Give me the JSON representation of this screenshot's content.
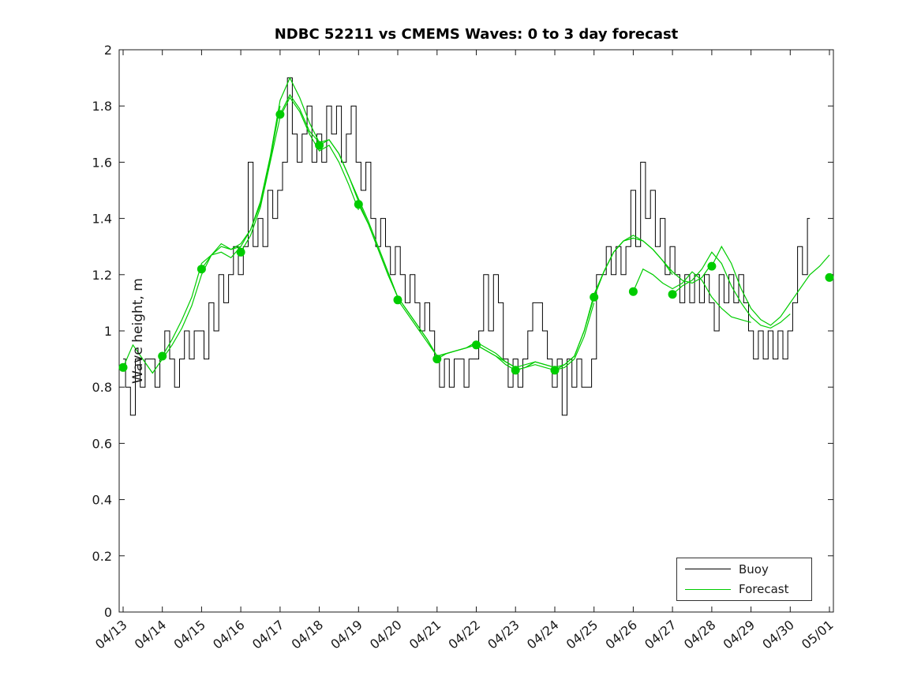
{
  "figure": {
    "title": "NDBC 52211 vs CMEMS Waves: 0 to 3 day forecast",
    "ylabel": "Wave height, m"
  },
  "legend": {
    "entries": [
      {
        "label": "Buoy",
        "color": "#000000"
      },
      {
        "label": "Forecast",
        "color": "#00cc00"
      }
    ]
  },
  "chart_data": {
    "type": "line",
    "title": "NDBC 52211 vs CMEMS Waves: 0 to 3 day forecast",
    "xlabel": "",
    "ylabel": "Wave height, m",
    "ylim": [
      0,
      2
    ],
    "xlim_days": [
      -0.1,
      18.1
    ],
    "grid": false,
    "legend_position": "bottom-right",
    "y_ticks": [
      {
        "value": 0,
        "label": "0"
      },
      {
        "value": 0.2,
        "label": "0.2"
      },
      {
        "value": 0.4,
        "label": "0.4"
      },
      {
        "value": 0.6,
        "label": "0.6"
      },
      {
        "value": 0.8,
        "label": "0.8"
      },
      {
        "value": 1,
        "label": "1"
      },
      {
        "value": 1.2,
        "label": "1.2"
      },
      {
        "value": 1.4,
        "label": "1.4"
      },
      {
        "value": 1.6,
        "label": "1.6"
      },
      {
        "value": 1.8,
        "label": "1.8"
      },
      {
        "value": 2,
        "label": "2"
      }
    ],
    "x_ticks": [
      {
        "day": 0,
        "label": "04/13"
      },
      {
        "day": 1,
        "label": "04/14"
      },
      {
        "day": 2,
        "label": "04/15"
      },
      {
        "day": 3,
        "label": "04/16"
      },
      {
        "day": 4,
        "label": "04/17"
      },
      {
        "day": 5,
        "label": "04/18"
      },
      {
        "day": 6,
        "label": "04/19"
      },
      {
        "day": 7,
        "label": "04/20"
      },
      {
        "day": 8,
        "label": "04/21"
      },
      {
        "day": 9,
        "label": "04/22"
      },
      {
        "day": 10,
        "label": "04/23"
      },
      {
        "day": 11,
        "label": "04/24"
      },
      {
        "day": 12,
        "label": "04/25"
      },
      {
        "day": 13,
        "label": "04/26"
      },
      {
        "day": 14,
        "label": "04/27"
      },
      {
        "day": 15,
        "label": "04/28"
      },
      {
        "day": 16,
        "label": "04/29"
      },
      {
        "day": 17,
        "label": "04/30"
      },
      {
        "day": 18,
        "label": "05/01"
      }
    ],
    "series": {
      "buoy": {
        "name": "Buoy",
        "color": "#000000",
        "x_start_day": 0,
        "x_step_days": 0.125,
        "values": [
          0.9,
          0.8,
          0.7,
          0.9,
          0.8,
          0.9,
          0.9,
          0.8,
          0.9,
          1.0,
          0.9,
          0.8,
          0.9,
          1.0,
          0.9,
          1.0,
          1.0,
          0.9,
          1.1,
          1.0,
          1.2,
          1.1,
          1.2,
          1.3,
          1.2,
          1.3,
          1.6,
          1.3,
          1.4,
          1.3,
          1.5,
          1.4,
          1.5,
          1.6,
          1.9,
          1.7,
          1.6,
          1.7,
          1.8,
          1.6,
          1.7,
          1.6,
          1.8,
          1.7,
          1.8,
          1.6,
          1.7,
          1.8,
          1.6,
          1.5,
          1.6,
          1.4,
          1.3,
          1.4,
          1.3,
          1.2,
          1.3,
          1.2,
          1.1,
          1.2,
          1.1,
          1.0,
          1.1,
          1.0,
          0.9,
          0.8,
          0.9,
          0.8,
          0.9,
          0.9,
          0.8,
          0.9,
          0.9,
          1.0,
          1.2,
          1.0,
          1.2,
          1.1,
          0.9,
          0.8,
          0.9,
          0.8,
          0.9,
          1.0,
          1.1,
          1.1,
          1.0,
          0.9,
          0.8,
          0.9,
          0.7,
          0.9,
          0.8,
          0.9,
          0.8,
          0.8,
          0.9,
          1.2,
          1.2,
          1.3,
          1.2,
          1.3,
          1.2,
          1.3,
          1.5,
          1.3,
          1.6,
          1.4,
          1.5,
          1.3,
          1.4,
          1.2,
          1.3,
          1.2,
          1.1,
          1.2,
          1.1,
          1.2,
          1.1,
          1.2,
          1.1,
          1.0,
          1.2,
          1.1,
          1.2,
          1.1,
          1.2,
          1.1,
          1.0,
          0.9,
          1.0,
          0.9,
          1.0,
          0.9,
          1.0,
          0.9,
          1.0,
          1.1,
          1.3,
          1.2,
          1.4
        ]
      },
      "forecasts": {
        "name": "Forecast",
        "color": "#00cc00",
        "x_step_days": 0.25,
        "runs": [
          {
            "start_day": 0,
            "start_label": "04/13",
            "values": [
              0.87,
              0.95,
              0.9,
              0.85,
              0.9,
              0.95,
              1.01,
              1.09,
              1.2,
              1.27,
              1.31,
              1.29,
              1.3
            ]
          },
          {
            "start_day": 1,
            "start_label": "04/14",
            "values": [
              0.91,
              0.97,
              1.04,
              1.12,
              1.24,
              1.27,
              1.28,
              1.26,
              1.3,
              1.36,
              1.45,
              1.61,
              1.8
            ]
          },
          {
            "start_day": 2,
            "start_label": "04/15",
            "values": [
              1.22,
              1.27,
              1.3,
              1.29,
              1.31,
              1.36,
              1.46,
              1.62,
              1.82,
              1.9,
              1.83,
              1.74,
              1.67
            ]
          },
          {
            "start_day": 3,
            "start_label": "04/16",
            "values": [
              1.28,
              1.34,
              1.44,
              1.6,
              1.76,
              1.83,
              1.78,
              1.7,
              1.64,
              1.66,
              1.6,
              1.52,
              1.43
            ]
          },
          {
            "start_day": 4,
            "start_label": "04/17",
            "values": [
              1.77,
              1.84,
              1.79,
              1.71,
              1.67,
              1.68,
              1.63,
              1.55,
              1.47,
              1.39,
              1.3,
              1.21,
              1.12
            ]
          },
          {
            "start_day": 5,
            "start_label": "04/18",
            "values": [
              1.66,
              1.68,
              1.63,
              1.55,
              1.46,
              1.38,
              1.29,
              1.2,
              1.12,
              1.07,
              1.02,
              0.97,
              0.91
            ]
          },
          {
            "start_day": 6,
            "start_label": "04/19",
            "values": [
              1.45,
              1.38,
              1.29,
              1.2,
              1.12,
              1.07,
              1.02,
              0.97,
              0.91,
              0.92,
              0.93,
              0.94,
              0.96
            ]
          },
          {
            "start_day": 7,
            "start_label": "04/20",
            "values": [
              1.11,
              1.06,
              1.01,
              0.96,
              0.91,
              0.92,
              0.93,
              0.94,
              0.95,
              0.93,
              0.91,
              0.89,
              0.87
            ]
          },
          {
            "start_day": 8,
            "start_label": "04/21",
            "values": [
              0.9,
              0.92,
              0.93,
              0.94,
              0.96,
              0.94,
              0.92,
              0.89,
              0.87,
              0.88,
              0.89,
              0.88,
              0.87
            ]
          },
          {
            "start_day": 9,
            "start_label": "04/22",
            "values": [
              0.95,
              0.93,
              0.91,
              0.88,
              0.86,
              0.87,
              0.88,
              0.87,
              0.86,
              0.87,
              0.9,
              0.98,
              1.1
            ]
          },
          {
            "start_day": 10,
            "start_label": "04/23",
            "values": [
              0.86,
              0.87,
              0.89,
              0.88,
              0.87,
              0.88,
              0.91,
              1.0,
              1.13,
              1.21,
              1.28,
              1.32,
              1.33
            ]
          },
          {
            "start_day": 11,
            "start_label": "04/24",
            "values": [
              0.86,
              0.88,
              0.91,
              1.0,
              1.12,
              1.21,
              1.28,
              1.32,
              1.33,
              1.32,
              1.29,
              1.25,
              1.2
            ]
          },
          {
            "start_day": 12,
            "start_label": "04/25",
            "values": [
              1.12,
              1.21,
              1.28,
              1.32,
              1.34,
              1.32,
              1.29,
              1.25,
              1.21,
              1.18,
              1.17,
              1.19,
              1.24
            ]
          },
          {
            "start_day": 13,
            "start_label": "04/26",
            "values": [
              1.14,
              1.22,
              1.2,
              1.17,
              1.15,
              1.17,
              1.21,
              1.18,
              1.12,
              1.08,
              1.05,
              1.04,
              1.03
            ]
          },
          {
            "start_day": 14,
            "start_label": "04/27",
            "values": [
              1.13,
              1.16,
              1.18,
              1.22,
              1.28,
              1.24,
              1.16,
              1.1,
              1.05,
              1.02,
              1.01,
              1.03,
              1.06
            ]
          },
          {
            "start_day": 15,
            "start_label": "04/28",
            "values": [
              1.23,
              1.3,
              1.24,
              1.15,
              1.08,
              1.04,
              1.02,
              1.05,
              1.1,
              1.15,
              1.2,
              1.23,
              1.27
            ]
          }
        ]
      },
      "extra_marker": {
        "day": 18,
        "label": "05/01",
        "value": 1.19
      }
    }
  }
}
